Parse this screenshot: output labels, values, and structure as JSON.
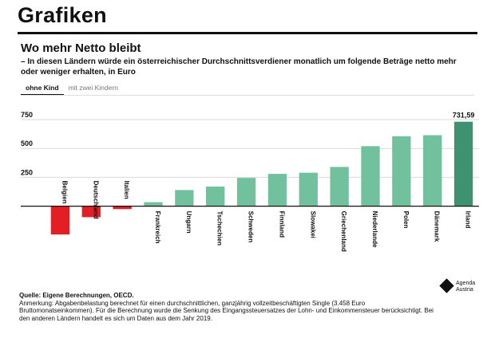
{
  "header": {
    "title": "Grafiken"
  },
  "chart_header": {
    "title": "Wo mehr Netto bleibt",
    "subtitle": "– In diesen Ländern würde ein österreichischer Durchschnittsverdiener monatlich um folgende Beträge netto mehr oder weniger erhalten, in Euro"
  },
  "tabs": [
    {
      "label": "ohne Kind",
      "active": true
    },
    {
      "label": "mit zwei Kindern",
      "active": false
    }
  ],
  "chart_data": {
    "type": "bar",
    "categories": [
      "Belgien",
      "Deutschland",
      "Italien",
      "Frankreich",
      "Ungarn",
      "Tschechien",
      "Schweden",
      "Finnland",
      "Slowakei",
      "Griechenland",
      "Niederlande",
      "Polen",
      "Dänemark",
      "Irland"
    ],
    "values": [
      -245,
      -95,
      -25,
      35,
      140,
      170,
      245,
      280,
      290,
      340,
      520,
      605,
      615,
      731.59
    ],
    "ylim": [
      -320,
      750
    ],
    "yticks": [
      250,
      500,
      750
    ],
    "highlight_label": "731,59",
    "colors": {
      "negative": "#e31f26",
      "positive": "#72c19e",
      "highlight": "#3e9270",
      "axis": "#111111",
      "grid": "#d9d9d9"
    },
    "grid": true
  },
  "footnote": {
    "source": "Quelle: Eigene Berechnungen, OECD.",
    "note": "Anmerkung: Abgabenbelastung berechnet für einen durchschnittlichen, ganzjährig vollzeitbeschäftigten Single (3.458 Euro Bruttomonatseinkommen). Für die Berechnung wurde die Senkung des Eingangssteuersatzes der Lohn- und Einkommensteuer berücksichtigt. Bei den anderen Ländern handelt es sich um Daten aus dem Jahr 2019."
  },
  "logo": {
    "line1": "Agenda",
    "line2": "Austria",
    "icon": "diamond-logo-icon"
  }
}
